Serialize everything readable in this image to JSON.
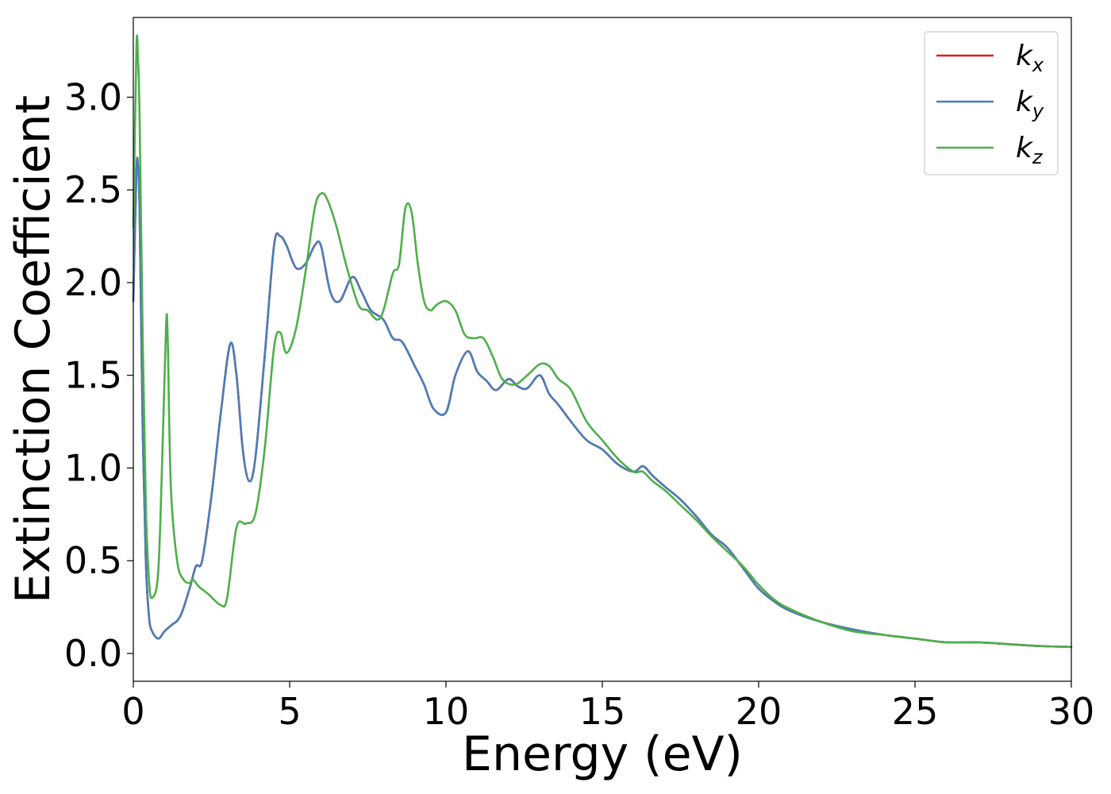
{
  "chart_data": {
    "type": "line",
    "xlabel": "Energy (eV)",
    "ylabel": "Extinction Coefficient",
    "xlim": [
      0,
      30
    ],
    "ylim": [
      -0.15,
      3.43
    ],
    "xticks": [
      0,
      5,
      10,
      15,
      20,
      25,
      30
    ],
    "yticks": [
      0.0,
      0.5,
      1.0,
      1.5,
      2.0,
      2.5,
      3.0
    ],
    "xtick_labels": [
      "0",
      "5",
      "10",
      "15",
      "20",
      "25",
      "30"
    ],
    "ytick_labels": [
      "0.0",
      "0.5",
      "1.0",
      "1.5",
      "2.0",
      "2.5",
      "3.0"
    ],
    "grid": false,
    "legend_position": "top-right",
    "series": [
      {
        "name": "k_x",
        "label_main": "k",
        "label_sub": "x",
        "color": "#e41a1c",
        "x": [
          0,
          0.1,
          0.15,
          0.2,
          0.3,
          0.4,
          0.5,
          0.6,
          0.8,
          1.0,
          1.2,
          1.5,
          1.8,
          2.0,
          2.2,
          2.5,
          2.8,
          3.1,
          3.3,
          3.5,
          3.7,
          3.9,
          4.2,
          4.5,
          4.7,
          4.9,
          5.2,
          5.5,
          5.8,
          6.0,
          6.3,
          6.6,
          7.0,
          7.3,
          7.6,
          8.0,
          8.3,
          8.6,
          9.0,
          9.3,
          9.6,
          10.0,
          10.3,
          10.7,
          11.0,
          11.3,
          11.6,
          12.0,
          12.3,
          12.6,
          13.0,
          13.3,
          13.6,
          14.0,
          14.5,
          15.0,
          15.5,
          16.0,
          16.3,
          16.6,
          17.0,
          17.5,
          18.0,
          18.5,
          19.0,
          19.5,
          20.0,
          20.5,
          21.0,
          22.0,
          23.0,
          24.0,
          25.0,
          26.0,
          27.0,
          28.0,
          29.0,
          30.0
        ],
        "y": [
          1.9,
          2.6,
          2.63,
          2.4,
          1.2,
          0.5,
          0.2,
          0.12,
          0.08,
          0.12,
          0.15,
          0.2,
          0.35,
          0.47,
          0.5,
          0.85,
          1.3,
          1.67,
          1.5,
          1.1,
          0.93,
          1.05,
          1.6,
          2.2,
          2.25,
          2.2,
          2.08,
          2.1,
          2.2,
          2.2,
          1.95,
          1.9,
          2.03,
          1.95,
          1.85,
          1.8,
          1.7,
          1.68,
          1.55,
          1.45,
          1.32,
          1.3,
          1.5,
          1.63,
          1.52,
          1.47,
          1.42,
          1.48,
          1.44,
          1.43,
          1.5,
          1.4,
          1.34,
          1.25,
          1.15,
          1.1,
          1.02,
          0.98,
          1.01,
          0.96,
          0.9,
          0.83,
          0.74,
          0.64,
          0.57,
          0.46,
          0.35,
          0.28,
          0.23,
          0.17,
          0.13,
          0.1,
          0.08,
          0.06,
          0.06,
          0.05,
          0.04,
          0.035
        ]
      },
      {
        "name": "k_y",
        "label_main": "k",
        "label_sub": "y",
        "color": "#4a7db8",
        "x": [
          0,
          0.1,
          0.15,
          0.2,
          0.3,
          0.4,
          0.5,
          0.6,
          0.8,
          1.0,
          1.2,
          1.5,
          1.8,
          2.0,
          2.2,
          2.5,
          2.8,
          3.1,
          3.3,
          3.5,
          3.7,
          3.9,
          4.2,
          4.5,
          4.7,
          4.9,
          5.2,
          5.5,
          5.8,
          6.0,
          6.3,
          6.6,
          7.0,
          7.3,
          7.6,
          8.0,
          8.3,
          8.6,
          9.0,
          9.3,
          9.6,
          10.0,
          10.3,
          10.7,
          11.0,
          11.3,
          11.6,
          12.0,
          12.3,
          12.6,
          13.0,
          13.3,
          13.6,
          14.0,
          14.5,
          15.0,
          15.5,
          16.0,
          16.3,
          16.6,
          17.0,
          17.5,
          18.0,
          18.5,
          19.0,
          19.5,
          20.0,
          20.5,
          21.0,
          22.0,
          23.0,
          24.0,
          25.0,
          26.0,
          27.0,
          28.0,
          29.0,
          30.0
        ],
        "y": [
          1.9,
          2.6,
          2.63,
          2.4,
          1.2,
          0.5,
          0.2,
          0.12,
          0.08,
          0.12,
          0.15,
          0.2,
          0.35,
          0.47,
          0.5,
          0.85,
          1.3,
          1.67,
          1.5,
          1.1,
          0.93,
          1.05,
          1.6,
          2.2,
          2.25,
          2.2,
          2.08,
          2.1,
          2.2,
          2.2,
          1.95,
          1.9,
          2.03,
          1.95,
          1.85,
          1.8,
          1.7,
          1.68,
          1.55,
          1.45,
          1.32,
          1.3,
          1.5,
          1.63,
          1.52,
          1.47,
          1.42,
          1.48,
          1.44,
          1.43,
          1.5,
          1.4,
          1.34,
          1.25,
          1.15,
          1.1,
          1.02,
          0.98,
          1.01,
          0.96,
          0.9,
          0.83,
          0.74,
          0.64,
          0.57,
          0.46,
          0.35,
          0.28,
          0.23,
          0.17,
          0.13,
          0.1,
          0.08,
          0.06,
          0.06,
          0.05,
          0.04,
          0.035
        ]
      },
      {
        "name": "k_z",
        "label_main": "k",
        "label_sub": "z",
        "color": "#4daf4a",
        "x": [
          0,
          0.1,
          0.15,
          0.2,
          0.3,
          0.4,
          0.5,
          0.6,
          0.8,
          0.95,
          1.05,
          1.1,
          1.2,
          1.4,
          1.6,
          1.8,
          1.9,
          2.1,
          2.4,
          2.8,
          3.0,
          3.3,
          3.6,
          3.9,
          4.2,
          4.5,
          4.7,
          4.9,
          5.2,
          5.5,
          5.8,
          6.0,
          6.2,
          6.5,
          6.8,
          7.2,
          7.5,
          7.8,
          8.0,
          8.3,
          8.5,
          8.7,
          8.9,
          9.1,
          9.3,
          9.5,
          9.7,
          10.0,
          10.3,
          10.6,
          10.9,
          11.2,
          11.5,
          11.8,
          12.2,
          12.6,
          13.0,
          13.3,
          13.6,
          14.0,
          14.5,
          15.0,
          15.5,
          16.0,
          16.3,
          16.6,
          17.0,
          17.5,
          18.0,
          18.5,
          19.0,
          19.5,
          20.0,
          20.5,
          21.0,
          22.0,
          23.0,
          24.0,
          25.0,
          26.0,
          27.0,
          28.0,
          29.0,
          30.0
        ],
        "y": [
          2.3,
          3.27,
          3.2,
          2.9,
          1.7,
          0.8,
          0.4,
          0.3,
          0.45,
          1.2,
          1.78,
          1.7,
          0.9,
          0.5,
          0.4,
          0.38,
          0.4,
          0.36,
          0.32,
          0.26,
          0.3,
          0.68,
          0.7,
          0.75,
          1.1,
          1.65,
          1.73,
          1.62,
          1.75,
          2.05,
          2.4,
          2.48,
          2.45,
          2.3,
          2.1,
          1.88,
          1.85,
          1.8,
          1.85,
          2.05,
          2.1,
          2.4,
          2.38,
          2.1,
          1.9,
          1.85,
          1.88,
          1.9,
          1.85,
          1.72,
          1.7,
          1.7,
          1.6,
          1.48,
          1.45,
          1.5,
          1.56,
          1.55,
          1.48,
          1.42,
          1.25,
          1.15,
          1.05,
          0.98,
          0.98,
          0.93,
          0.88,
          0.8,
          0.72,
          0.63,
          0.55,
          0.47,
          0.37,
          0.29,
          0.24,
          0.17,
          0.12,
          0.1,
          0.08,
          0.06,
          0.06,
          0.05,
          0.04,
          0.035
        ]
      }
    ]
  }
}
